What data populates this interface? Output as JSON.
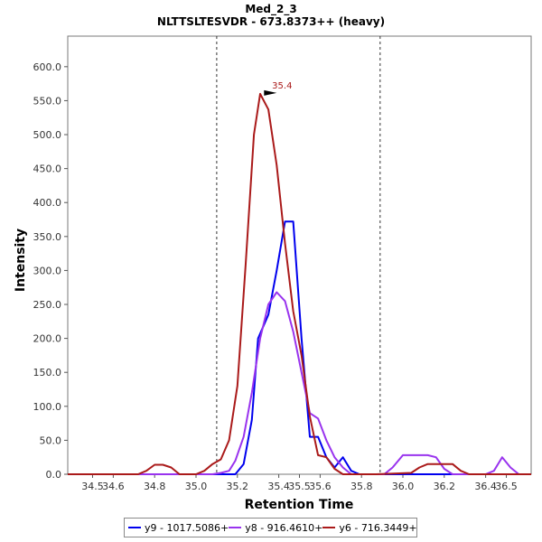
{
  "chart_data": {
    "type": "line",
    "title": "Med_2_3",
    "subtitle": "NLTTSLTESVDR - 673.8373++ (heavy)",
    "xlabel": "Retention Time",
    "ylabel": "Intensity",
    "xlim": [
      34.38,
      36.62
    ],
    "ylim": [
      0,
      645
    ],
    "x_ticks": [
      "34.5",
      "34.6",
      "34.8",
      "35.0",
      "35.2",
      "35.4",
      "35.5",
      "35.6",
      "35.8",
      "36.0",
      "36.2",
      "36.4",
      "36.5"
    ],
    "x_tick_values": [
      34.5,
      34.6,
      34.8,
      35.0,
      35.2,
      35.4,
      35.5,
      35.6,
      35.8,
      36.0,
      36.2,
      36.4,
      36.5
    ],
    "y_ticks": [
      "0.0",
      "50.0",
      "100.0",
      "150.0",
      "200.0",
      "250.0",
      "300.0",
      "350.0",
      "400.0",
      "450.0",
      "500.0",
      "550.0",
      "600.0"
    ],
    "y_tick_values": [
      0,
      50,
      100,
      150,
      200,
      250,
      300,
      350,
      400,
      450,
      500,
      550,
      600
    ],
    "integration_bounds": [
      35.1,
      35.89
    ],
    "peak_annotation": {
      "label": "35.4",
      "x": 35.39,
      "y": 560
    },
    "series": [
      {
        "name": "y9 - 1017.5086+",
        "color": "#0000ee",
        "x": [
          34.38,
          35.15,
          35.19,
          35.23,
          35.27,
          35.3,
          35.35,
          35.39,
          35.43,
          35.47,
          35.51,
          35.55,
          35.59,
          35.63,
          35.67,
          35.71,
          35.75,
          35.79,
          35.83,
          35.87,
          35.91,
          36.62
        ],
        "y": [
          0,
          0,
          0,
          15,
          80,
          200,
          235,
          300,
          372,
          372,
          200,
          55,
          55,
          25,
          10,
          25,
          5,
          0,
          0,
          0,
          0,
          0
        ]
      },
      {
        "name": "y8 - 916.4610+",
        "color": "#9933ee",
        "x": [
          34.38,
          35.08,
          35.12,
          35.16,
          35.19,
          35.23,
          35.27,
          35.31,
          35.35,
          35.39,
          35.43,
          35.47,
          35.51,
          35.55,
          35.59,
          35.63,
          35.67,
          35.71,
          35.75,
          35.79,
          35.83,
          35.87,
          35.91,
          35.95,
          36.0,
          36.04,
          36.08,
          36.12,
          36.16,
          36.2,
          36.24,
          36.28,
          36.32,
          36.36,
          36.4,
          36.44,
          36.48,
          36.52,
          36.56,
          36.62
        ],
        "y": [
          0,
          0,
          2,
          5,
          20,
          55,
          120,
          200,
          250,
          268,
          255,
          210,
          150,
          90,
          82,
          50,
          25,
          10,
          0,
          0,
          0,
          0,
          0,
          10,
          28,
          28,
          28,
          28,
          25,
          8,
          0,
          0,
          0,
          0,
          0,
          5,
          25,
          10,
          0,
          0
        ]
      },
      {
        "name": "y6 - 716.3449+",
        "color": "#aa1a1a",
        "x": [
          34.38,
          34.72,
          34.76,
          34.8,
          34.84,
          34.88,
          34.92,
          35.0,
          35.04,
          35.08,
          35.12,
          35.16,
          35.2,
          35.24,
          35.28,
          35.31,
          35.35,
          35.39,
          35.43,
          35.47,
          35.51,
          35.55,
          35.59,
          35.63,
          35.67,
          35.71,
          35.75,
          35.79,
          35.83,
          35.87,
          36.04,
          36.08,
          36.12,
          36.16,
          36.2,
          36.24,
          36.28,
          36.32,
          36.62
        ],
        "y": [
          0,
          0,
          5,
          14,
          14,
          10,
          0,
          0,
          5,
          15,
          22,
          50,
          130,
          310,
          500,
          560,
          537,
          455,
          340,
          240,
          175,
          85,
          28,
          25,
          8,
          0,
          0,
          0,
          0,
          0,
          2,
          10,
          15,
          15,
          15,
          15,
          5,
          0,
          0
        ]
      }
    ]
  }
}
